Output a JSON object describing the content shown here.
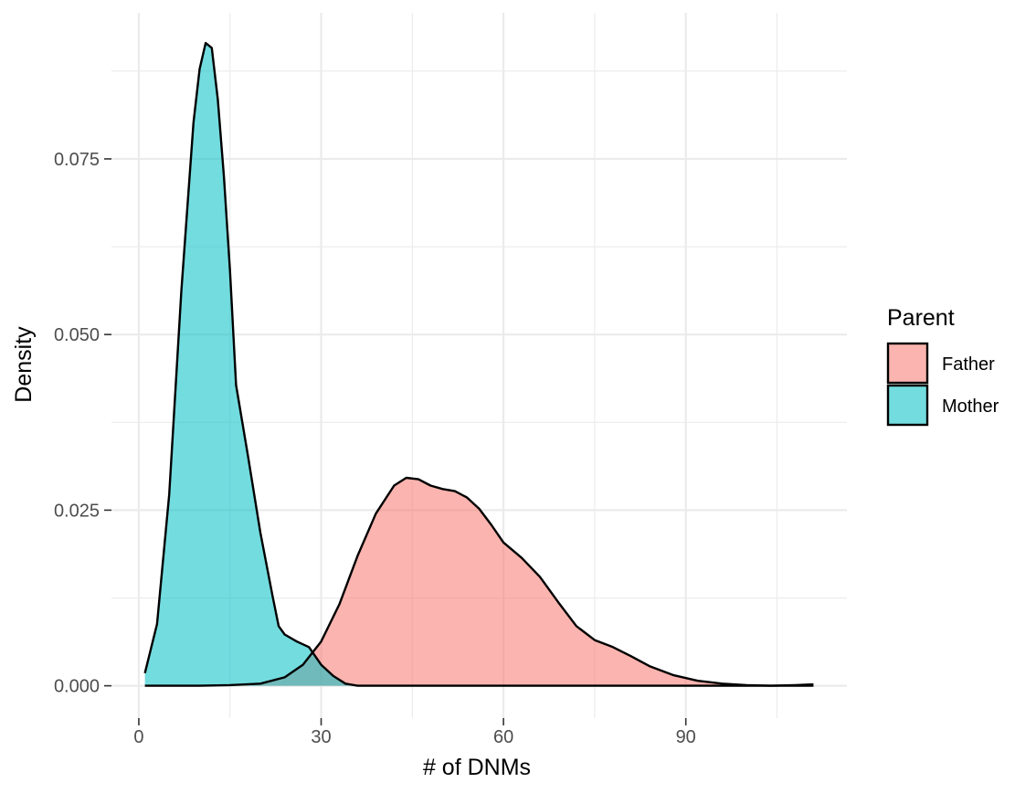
{
  "chart_data": {
    "type": "area",
    "xlabel": "# of DNMs",
    "ylabel": "Density",
    "xlim": [
      -4.5,
      116.5
    ],
    "ylim": [
      -0.0046,
      0.0958
    ],
    "x_ticks": [
      0,
      30,
      60,
      90
    ],
    "x_minor_ticks": [
      15,
      45,
      75,
      105
    ],
    "y_ticks": [
      0.0,
      0.025,
      0.05,
      0.075
    ],
    "y_tick_labels": [
      "0.000",
      "0.025",
      "0.050",
      "0.075"
    ],
    "y_minor_ticks": [
      0.0125,
      0.0375,
      0.0625,
      0.0875
    ],
    "grid": true,
    "fill_opacity": 0.55,
    "legend": {
      "title": "Parent",
      "position": "right",
      "entries": [
        "Father",
        "Mother"
      ]
    },
    "series": [
      {
        "name": "Father",
        "color": "#F8766D",
        "x": [
          1,
          5,
          10,
          15,
          20,
          24,
          27,
          30,
          33,
          36,
          39,
          42,
          44,
          46,
          48,
          50,
          52,
          54,
          56,
          58,
          60,
          63,
          66,
          69,
          72,
          75,
          78,
          81,
          84,
          88,
          92,
          96,
          100,
          104,
          108,
          111
        ],
        "y": [
          0.0,
          0.0,
          0.0,
          0.0001,
          0.0003,
          0.0012,
          0.003,
          0.0063,
          0.0116,
          0.0185,
          0.0245,
          0.0285,
          0.0296,
          0.0294,
          0.0285,
          0.028,
          0.0277,
          0.0268,
          0.0252,
          0.0229,
          0.0204,
          0.0182,
          0.0155,
          0.0119,
          0.0085,
          0.0065,
          0.0055,
          0.0042,
          0.0028,
          0.0015,
          0.0007,
          0.0003,
          0.0001,
          0.0,
          0.0001,
          0.0002
        ]
      },
      {
        "name": "Mother",
        "color": "#00BFC4",
        "x": [
          1,
          3,
          5,
          7,
          9,
          10,
          11,
          12,
          13,
          14,
          15,
          16,
          18,
          20,
          22,
          23,
          24,
          26,
          28,
          30,
          32,
          34,
          36,
          40,
          50,
          60,
          80,
          100,
          111
        ],
        "y": [
          0.0018,
          0.0088,
          0.0272,
          0.0562,
          0.0802,
          0.0878,
          0.0915,
          0.0908,
          0.0835,
          0.0725,
          0.0592,
          0.0428,
          0.0325,
          0.0218,
          0.0128,
          0.0085,
          0.0073,
          0.0063,
          0.0055,
          0.003,
          0.0014,
          0.0003,
          0.0,
          0.0,
          0.0,
          0.0,
          0.0,
          0.0,
          0.0
        ]
      }
    ]
  }
}
